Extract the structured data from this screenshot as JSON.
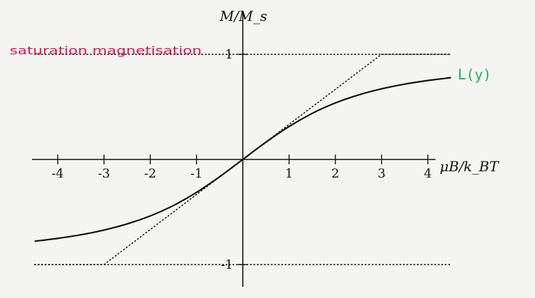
{
  "chart_data": {
    "type": "line",
    "xlabel": "μB/k_BT",
    "ylabel": "M/M_s",
    "xlim": [
      -4.5,
      4.5
    ],
    "ylim": [
      -1.3,
      1.3
    ],
    "x_ticks": [
      -4,
      -3,
      -2,
      -1,
      1,
      2,
      3,
      4
    ],
    "x_tick_labels": [
      "-4",
      "-3",
      "-2",
      "-1",
      "1",
      "2",
      "3",
      "4"
    ],
    "y_tick_labels": [
      {
        "value": 1,
        "label": "1"
      },
      {
        "value": -1,
        "label": "-1"
      }
    ],
    "series": [
      {
        "name": "L(y)",
        "style": "solid",
        "x": [
          -4.5,
          -4.0,
          -3.5,
          -3.0,
          -2.5,
          -2.0,
          -1.5,
          -1.0,
          -0.5,
          0.0,
          0.5,
          1.0,
          1.5,
          2.0,
          2.5,
          3.0,
          3.5,
          4.0,
          4.5
        ],
        "y": [
          -0.7779,
          -0.7507,
          -0.7164,
          -0.6716,
          -0.6135,
          -0.5373,
          -0.4381,
          -0.313,
          -0.164,
          0.0,
          0.164,
          0.313,
          0.4381,
          0.5373,
          0.6135,
          0.6716,
          0.7164,
          0.7507,
          0.7779
        ]
      },
      {
        "name": "",
        "style": "dotted",
        "x": [
          -4.5,
          -3.0,
          3.0,
          4.5
        ],
        "y": [
          -1,
          -1,
          1,
          1
        ]
      },
      {
        "name": "",
        "style": "dotted",
        "x": [
          -4.5,
          4.5
        ],
        "y": [
          1,
          1
        ]
      },
      {
        "name": "",
        "style": "dotted",
        "x": [
          -4.5,
          4.5
        ],
        "y": [
          -1,
          -1
        ]
      }
    ],
    "annotations": [
      {
        "text": "saturation magnetisation",
        "color": "#e0134b"
      },
      {
        "text": "L(y)",
        "color": "#10b85a"
      }
    ],
    "grid": false,
    "legend": "none"
  }
}
